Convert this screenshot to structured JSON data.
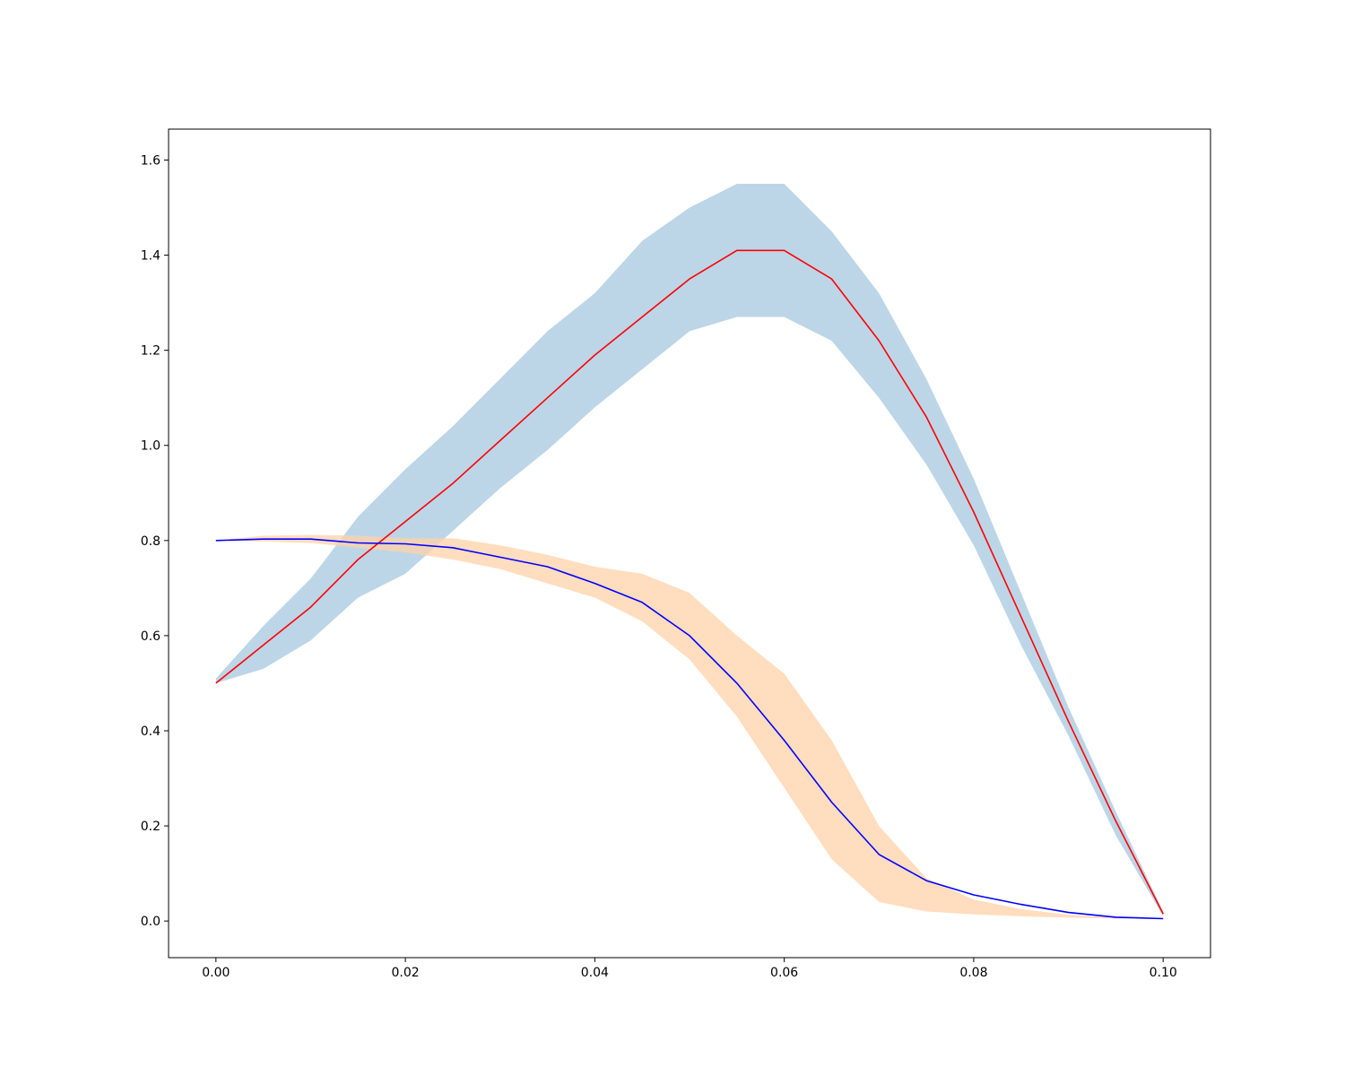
{
  "chart_data": {
    "type": "line",
    "title": "",
    "xlabel": "",
    "ylabel": "",
    "xlim": [
      -0.005,
      0.105
    ],
    "ylim": [
      -0.077,
      1.665
    ],
    "x_ticks": [
      0.0,
      0.02,
      0.04,
      0.06,
      0.08,
      0.1
    ],
    "x_tick_labels": [
      "0.00",
      "0.02",
      "0.04",
      "0.06",
      "0.08",
      "0.10"
    ],
    "y_ticks": [
      0.0,
      0.2,
      0.4,
      0.6,
      0.8,
      1.0,
      1.2,
      1.4,
      1.6
    ],
    "y_tick_labels": [
      "0.0",
      "0.2",
      "0.4",
      "0.6",
      "0.8",
      "1.0",
      "1.2",
      "1.4",
      "1.6"
    ],
    "grid": false,
    "legend": "none",
    "x": [
      0.0,
      0.005,
      0.01,
      0.015,
      0.02,
      0.025,
      0.03,
      0.035,
      0.04,
      0.045,
      0.05,
      0.055,
      0.06,
      0.065,
      0.07,
      0.075,
      0.08,
      0.085,
      0.09,
      0.095,
      0.1
    ],
    "series": [
      {
        "color": "#ff0000",
        "band_color": "#a6c8e0",
        "values": [
          0.5,
          0.58,
          0.66,
          0.76,
          0.84,
          0.92,
          1.01,
          1.1,
          1.19,
          1.27,
          1.35,
          1.41,
          1.41,
          1.35,
          1.22,
          1.06,
          0.86,
          0.64,
          0.42,
          0.21,
          0.015
        ],
        "band_upper": [
          0.51,
          0.62,
          0.72,
          0.85,
          0.95,
          1.04,
          1.14,
          1.24,
          1.32,
          1.43,
          1.5,
          1.55,
          1.55,
          1.45,
          1.32,
          1.14,
          0.93,
          0.69,
          0.45,
          0.23,
          0.02
        ],
        "band_lower": [
          0.5,
          0.53,
          0.59,
          0.68,
          0.73,
          0.82,
          0.91,
          0.99,
          1.08,
          1.16,
          1.24,
          1.27,
          1.27,
          1.22,
          1.1,
          0.96,
          0.79,
          0.58,
          0.39,
          0.18,
          0.01
        ]
      },
      {
        "color": "#0000ff",
        "band_color": "#ffd1a8",
        "values": [
          0.8,
          0.803,
          0.803,
          0.795,
          0.793,
          0.785,
          0.765,
          0.745,
          0.71,
          0.67,
          0.6,
          0.5,
          0.38,
          0.25,
          0.14,
          0.085,
          0.055,
          0.035,
          0.018,
          0.008,
          0.005
        ],
        "band_upper": [
          0.8,
          0.81,
          0.812,
          0.81,
          0.805,
          0.805,
          0.79,
          0.77,
          0.745,
          0.73,
          0.69,
          0.6,
          0.52,
          0.38,
          0.2,
          0.09,
          0.045,
          0.025,
          0.013,
          0.007,
          0.005
        ],
        "band_lower": [
          0.8,
          0.798,
          0.795,
          0.785,
          0.775,
          0.76,
          0.74,
          0.71,
          0.68,
          0.63,
          0.55,
          0.43,
          0.28,
          0.13,
          0.04,
          0.02,
          0.014,
          0.01,
          0.007,
          0.005,
          0.005
        ]
      }
    ]
  }
}
